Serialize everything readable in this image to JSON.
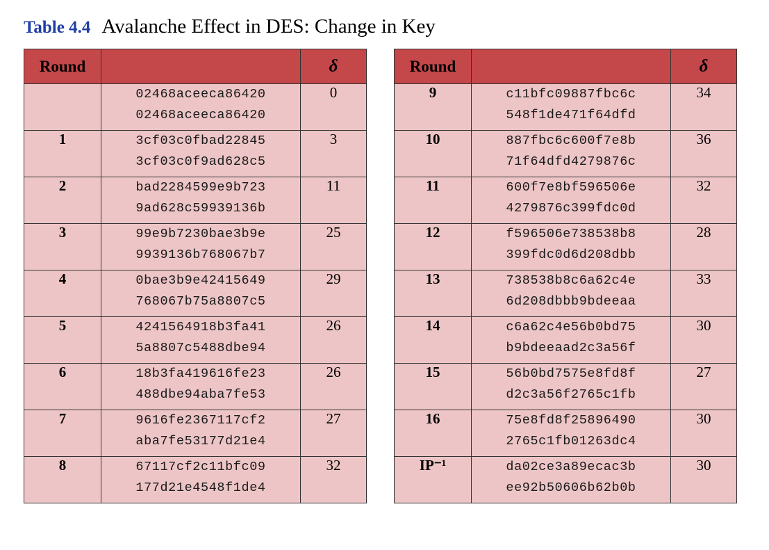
{
  "caption": {
    "label": "Table 4.4",
    "title": "Avalanche Effect in DES: Change in Key"
  },
  "headers": {
    "round": "Round",
    "values": "",
    "delta": "δ"
  },
  "left_rows": [
    {
      "round": "",
      "line1": "02468aceeca86420",
      "line2": "02468aceeca86420",
      "delta": "0"
    },
    {
      "round": "1",
      "line1": "3cf03c0fbad22845",
      "line2": "3cf03c0f9ad628c5",
      "delta": "3"
    },
    {
      "round": "2",
      "line1": "bad2284599e9b723",
      "line2": "9ad628c59939136b",
      "delta": "11"
    },
    {
      "round": "3",
      "line1": "99e9b7230bae3b9e",
      "line2": "9939136b768067b7",
      "delta": "25"
    },
    {
      "round": "4",
      "line1": "0bae3b9e42415649",
      "line2": "768067b75a8807c5",
      "delta": "29"
    },
    {
      "round": "5",
      "line1": "4241564918b3fa41",
      "line2": "5a8807c5488dbe94",
      "delta": "26"
    },
    {
      "round": "6",
      "line1": "18b3fa419616fe23",
      "line2": "488dbe94aba7fe53",
      "delta": "26"
    },
    {
      "round": "7",
      "line1": "9616fe2367117cf2",
      "line2": "aba7fe53177d21e4",
      "delta": "27"
    },
    {
      "round": "8",
      "line1": "67117cf2c11bfc09",
      "line2": "177d21e4548f1de4",
      "delta": "32"
    }
  ],
  "right_rows": [
    {
      "round": "9",
      "line1": "c11bfc09887fbc6c",
      "line2": "548f1de471f64dfd",
      "delta": "34"
    },
    {
      "round": "10",
      "line1": "887fbc6c600f7e8b",
      "line2": "71f64dfd4279876c",
      "delta": "36"
    },
    {
      "round": "11",
      "line1": "600f7e8bf596506e",
      "line2": "4279876c399fdc0d",
      "delta": "32"
    },
    {
      "round": "12",
      "line1": "f596506e738538b8",
      "line2": "399fdc0d6d208dbb",
      "delta": "28"
    },
    {
      "round": "13",
      "line1": "738538b8c6a62c4e",
      "line2": "6d208dbbb9bdeeaa",
      "delta": "33"
    },
    {
      "round": "14",
      "line1": "c6a62c4e56b0bd75",
      "line2": "b9bdeeaad2c3a56f",
      "delta": "30"
    },
    {
      "round": "15",
      "line1": "56b0bd7575e8fd8f",
      "line2": "d2c3a56f2765c1fb",
      "delta": "27"
    },
    {
      "round": "16",
      "line1": "75e8fd8f25896490",
      "line2": "2765c1fb01263dc4",
      "delta": "30"
    },
    {
      "round": "IP⁻¹",
      "line1": "da02ce3a89ecac3b",
      "line2": "ee92b50606b62b0b",
      "delta": "30"
    }
  ],
  "colors": {
    "header_bg": "#c4474a",
    "cell_bg": "#edc5c6",
    "caption_label": "#1f3fa6",
    "border": "#333333"
  }
}
